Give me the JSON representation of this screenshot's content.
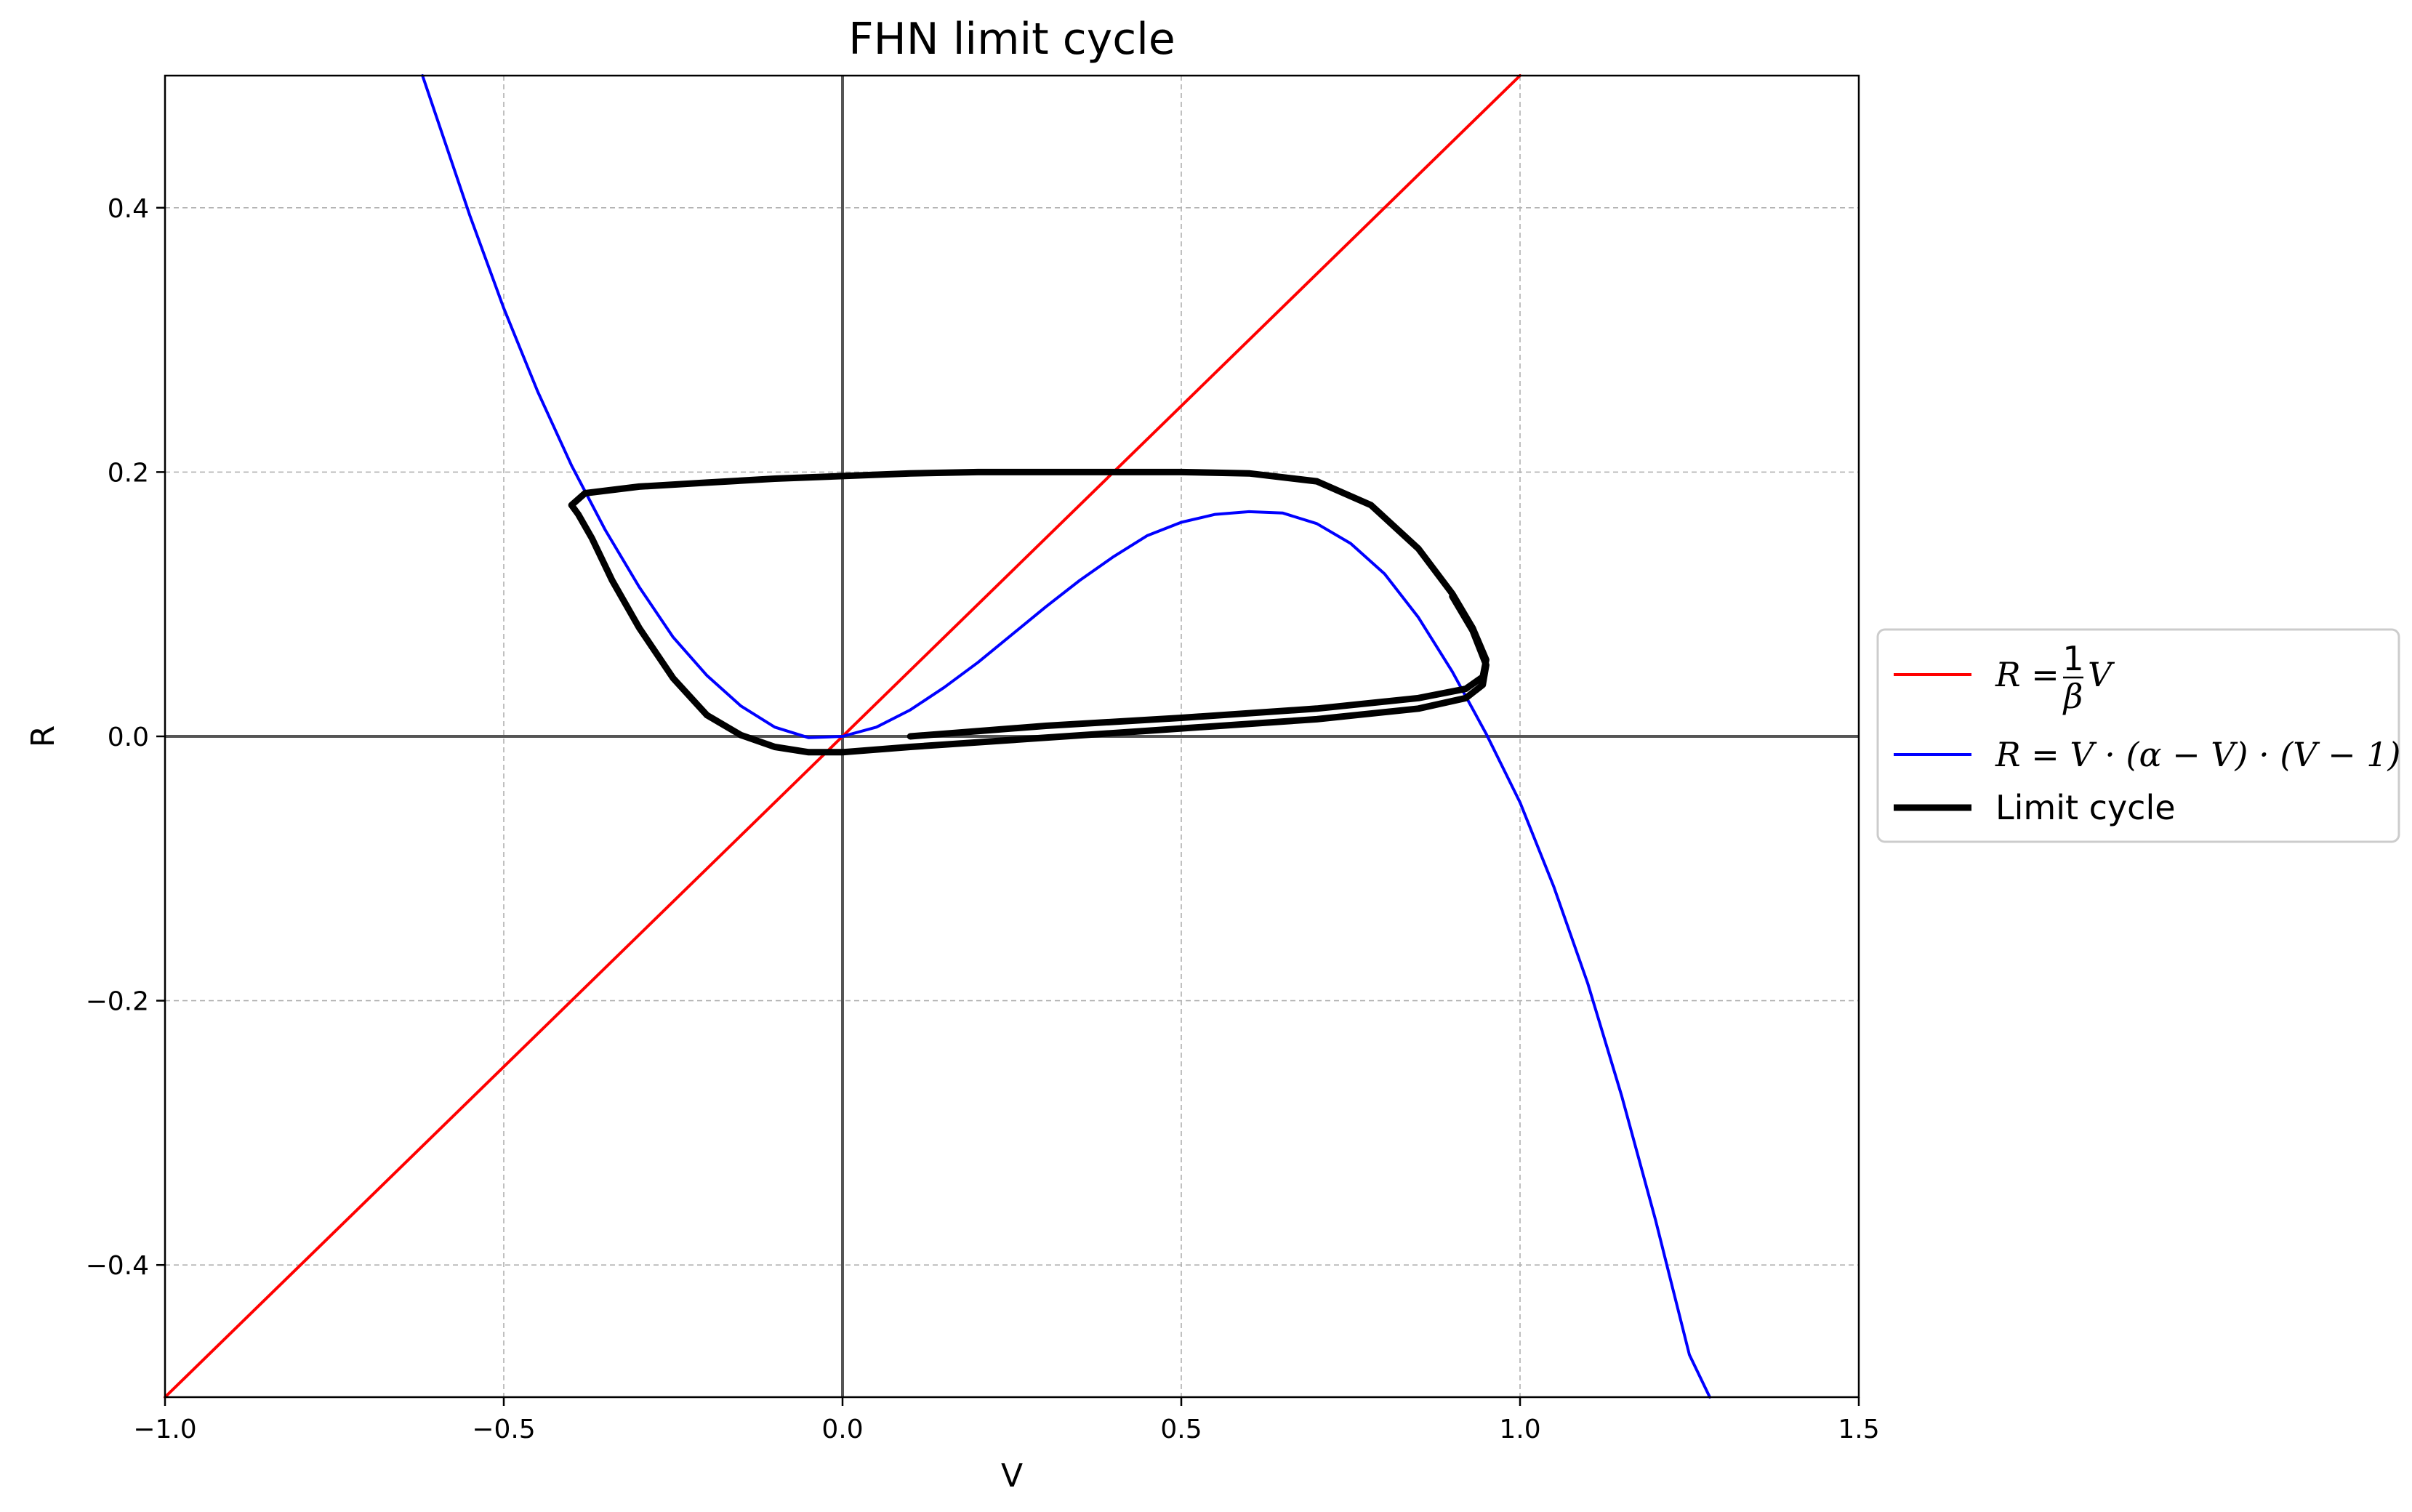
{
  "chart_data": {
    "type": "line",
    "title": "FHN limit cycle",
    "xlabel": "V",
    "ylabel": "R",
    "xlim": [
      -1.0,
      1.5
    ],
    "ylim": [
      -0.5,
      0.5
    ],
    "grid": true,
    "xticks": [
      -1.0,
      -0.5,
      0.0,
      0.5,
      1.0,
      1.5
    ],
    "xtick_labels": [
      "−1.0",
      "−0.5",
      "0.0",
      "0.5",
      "1.0",
      "1.5"
    ],
    "yticks": [
      -0.4,
      -0.2,
      0.0,
      0.2,
      0.4
    ],
    "ytick_labels": [
      "−0.4",
      "−0.2",
      "0.0",
      "0.2",
      "0.4"
    ],
    "reference_lines": {
      "x": 0,
      "y": 0
    },
    "legend_position": "center-right outside",
    "legend_texts": {
      "s1_prefix": "R = ",
      "s1_num": "1",
      "s1_den": "β",
      "s1_suffix": "V",
      "s2_label": "R = V · (α − V) · (V − 1)",
      "s3_label": "Limit cycle"
    },
    "series": [
      {
        "name": "R = (1/β) V",
        "color": "#ff0000",
        "line_width": 4,
        "x": [
          -1.0,
          1.0
        ],
        "y": [
          -0.5,
          0.5
        ]
      },
      {
        "name": "R = V·(α−V)·(V−1)",
        "color": "#0000ff",
        "line_width": 4,
        "x": [
          -0.62,
          -0.55,
          -0.5,
          -0.45,
          -0.4,
          -0.35,
          -0.3,
          -0.25,
          -0.2,
          -0.15,
          -0.1,
          -0.05,
          0.0,
          0.05,
          0.1,
          0.15,
          0.2,
          0.25,
          0.3,
          0.35,
          0.4,
          0.45,
          0.5,
          0.55,
          0.6,
          0.65,
          0.7,
          0.75,
          0.8,
          0.85,
          0.9,
          0.95,
          1.0,
          1.05,
          1.1,
          1.15,
          1.2,
          1.25,
          1.28
        ],
        "y": [
          0.5,
          0.394,
          0.324,
          0.261,
          0.205,
          0.156,
          0.113,
          0.075,
          0.046,
          0.023,
          0.007,
          -0.001,
          0.0,
          0.007,
          0.02,
          0.037,
          0.056,
          0.077,
          0.098,
          0.118,
          0.136,
          0.152,
          0.162,
          0.168,
          0.17,
          0.169,
          0.161,
          0.146,
          0.123,
          0.09,
          0.049,
          0.002,
          -0.05,
          -0.114,
          -0.187,
          -0.272,
          -0.366,
          -0.468,
          -0.5
        ]
      },
      {
        "name": "Limit cycle",
        "color": "#000000",
        "line_width": 9,
        "x": [
          0.1,
          0.3,
          0.5,
          0.7,
          0.85,
          0.92,
          0.945,
          0.95,
          0.93,
          0.9,
          0.85,
          0.78,
          0.7,
          0.6,
          0.5,
          0.4,
          0.3,
          0.2,
          0.1,
          0.0,
          -0.1,
          -0.2,
          -0.3,
          -0.38,
          -0.4,
          -0.39,
          -0.37,
          -0.34,
          -0.3,
          -0.25,
          -0.2,
          -0.15,
          -0.1,
          -0.05,
          0.0,
          0.1,
          0.3,
          0.5,
          0.7,
          0.85,
          0.92,
          0.945,
          0.95,
          0.93,
          0.9
        ],
        "y": [
          0.0,
          0.008,
          0.014,
          0.021,
          0.029,
          0.036,
          0.045,
          0.058,
          0.082,
          0.108,
          0.142,
          0.175,
          0.193,
          0.199,
          0.2,
          0.2,
          0.2,
          0.2,
          0.199,
          0.197,
          0.195,
          0.192,
          0.189,
          0.184,
          0.175,
          0.168,
          0.15,
          0.118,
          0.082,
          0.044,
          0.016,
          0.001,
          -0.008,
          -0.012,
          -0.012,
          -0.008,
          -0.001,
          0.006,
          0.013,
          0.021,
          0.029,
          0.039,
          0.054,
          0.08,
          0.106
        ]
      }
    ]
  }
}
